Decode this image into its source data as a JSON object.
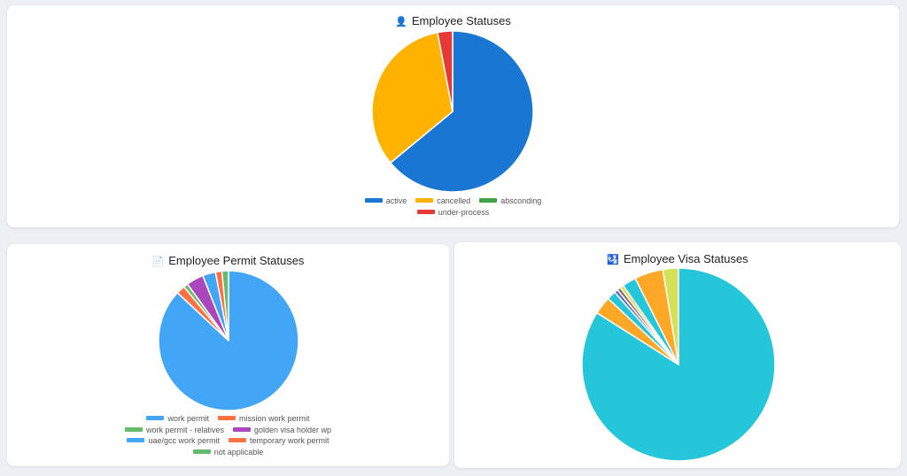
{
  "chart_data": [
    {
      "id": "status",
      "type": "pie",
      "title": "Employee Statuses",
      "title_icon": "person-icon",
      "title_icon_glyph": "👤",
      "categories": [
        "active",
        "cancelled",
        "absconding",
        "under-process"
      ],
      "values": [
        64,
        33,
        0,
        3
      ],
      "colors": [
        "#1976d2",
        "#ffb300",
        "#43a047",
        "#e53935"
      ],
      "legend": "bottom",
      "legend_rows": [
        [
          0,
          1,
          2
        ],
        [
          3
        ]
      ]
    },
    {
      "id": "permit",
      "type": "pie",
      "title": "Employee Permit Statuses",
      "title_icon": "document-icon",
      "title_icon_glyph": "📄",
      "categories": [
        "work permit",
        "mission work permit",
        "work permit - relatives",
        "golden visa holder wp",
        "uae/gcc work permit",
        "temporary work permit",
        "not applicable"
      ],
      "values": [
        87,
        2,
        1,
        4,
        3,
        1.5,
        1.5
      ],
      "colors": [
        "#42a5f5",
        "#ff7043",
        "#66bb6a",
        "#ab47bc",
        "#42a5f5",
        "#ff7043",
        "#66bb6a"
      ],
      "legend": "bottom",
      "legend_rows": [
        [
          0,
          1
        ],
        [
          2,
          3
        ],
        [
          4,
          5
        ],
        [
          6
        ]
      ]
    },
    {
      "id": "visa",
      "type": "pie",
      "title": "Employee Visa Statuses",
      "title_icon": "passport-icon",
      "title_icon_glyph": "🛂",
      "categories": [
        "",
        "",
        "",
        "",
        "",
        "",
        "",
        "",
        ""
      ],
      "values": [
        84,
        3,
        1.5,
        0.6,
        0.6,
        0.6,
        2.3,
        4.8,
        2.6
      ],
      "colors": [
        "#26c6da",
        "#ffa726",
        "#26c6da",
        "#5c6bc0",
        "#8d6e63",
        "#d4e157",
        "#26c6da",
        "#ffa726",
        "#d4e157"
      ],
      "legend": "none",
      "legend_rows": []
    }
  ]
}
